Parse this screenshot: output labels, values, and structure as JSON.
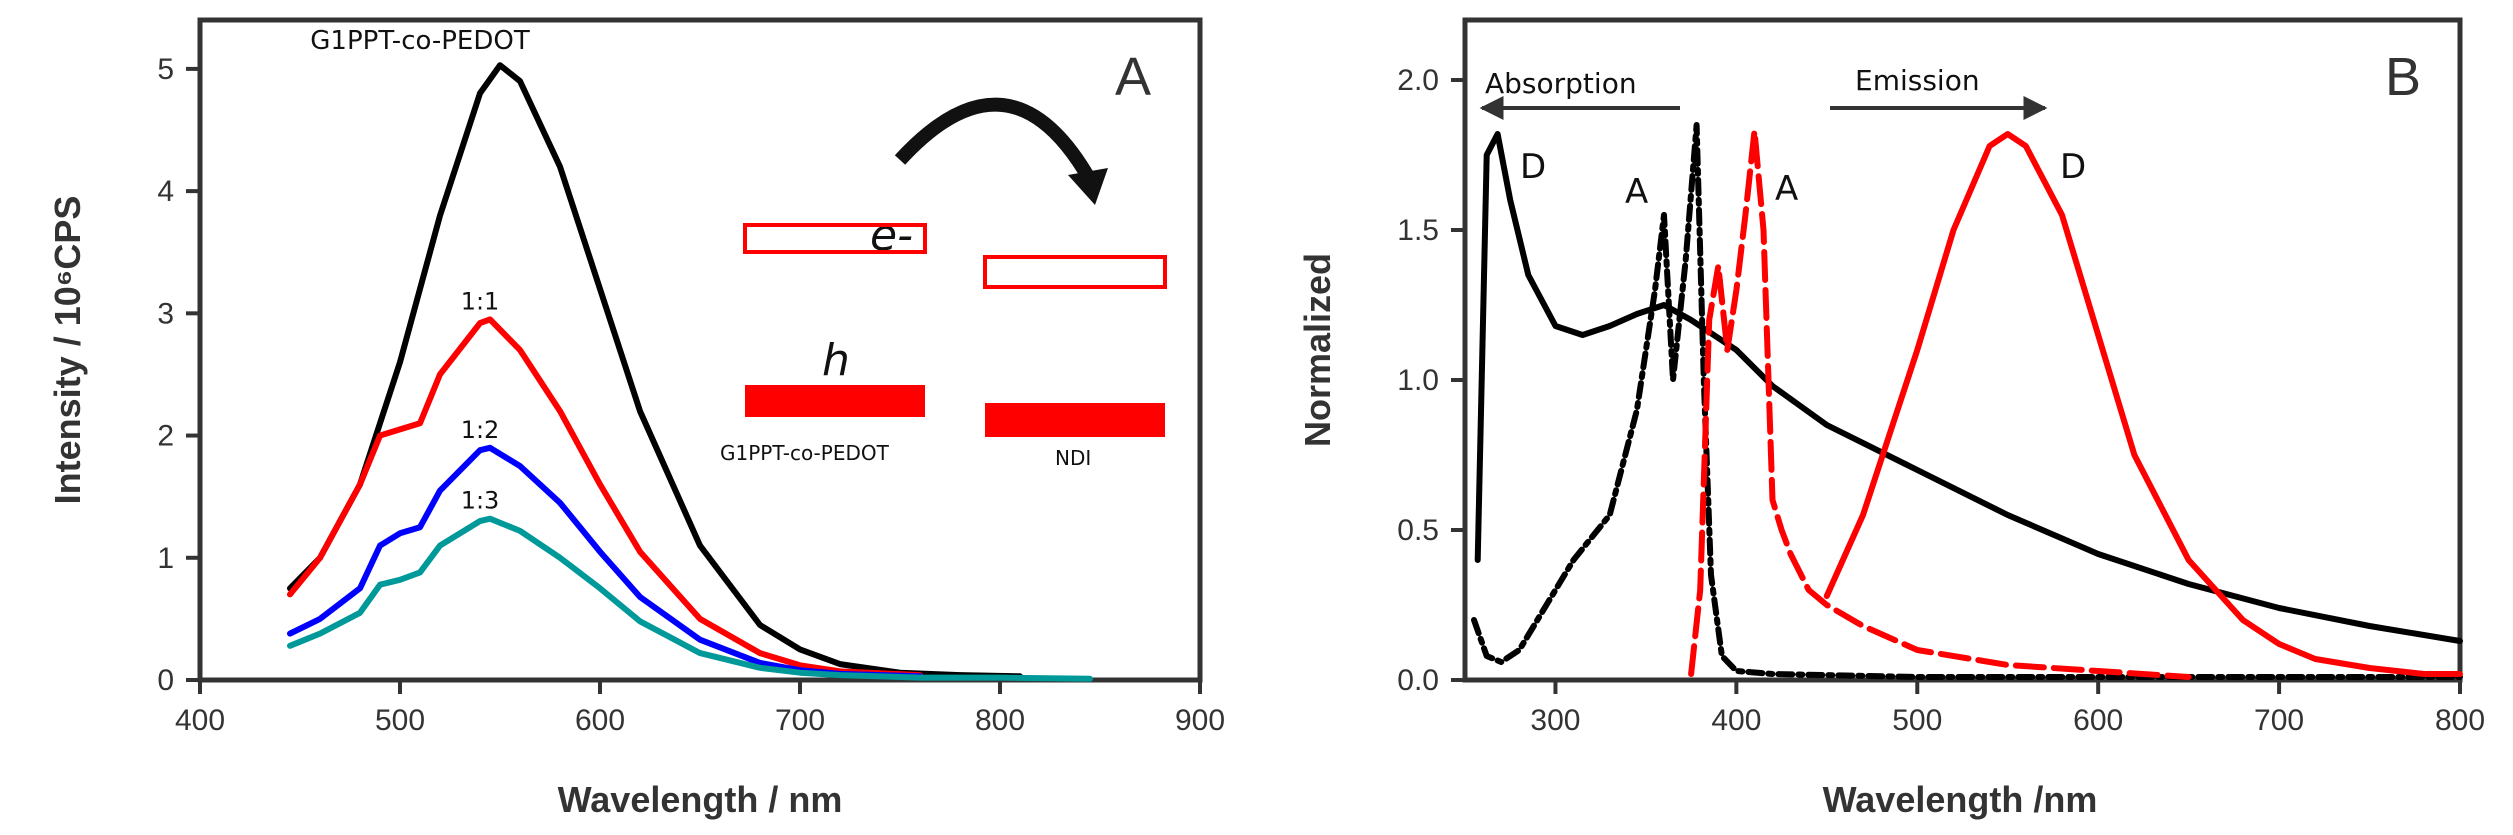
{
  "chart_data": [
    {
      "type": "line",
      "panel_label": "A",
      "xlabel": "Wavelength / nm",
      "ylabel": "Intensity / 10⁶CPS",
      "xlim": [
        400,
        900
      ],
      "ylim": [
        0,
        5.4
      ],
      "xticks": [
        400,
        500,
        600,
        700,
        800,
        900
      ],
      "yticks": [
        0,
        1,
        2,
        3,
        4,
        5
      ],
      "grid": false,
      "series": [
        {
          "name": "G1PPT-co-PEDOT",
          "color": "#000000",
          "x": [
            445,
            460,
            480,
            500,
            520,
            540,
            550,
            560,
            580,
            600,
            620,
            650,
            680,
            700,
            720,
            750,
            780,
            810
          ],
          "y": [
            0.75,
            1.0,
            1.6,
            2.6,
            3.8,
            4.8,
            5.03,
            4.9,
            4.2,
            3.2,
            2.2,
            1.1,
            0.45,
            0.25,
            0.13,
            0.06,
            0.04,
            0.03
          ]
        },
        {
          "name": "1:1",
          "color": "#ff0000",
          "x": [
            445,
            460,
            480,
            490,
            500,
            510,
            520,
            540,
            545,
            560,
            580,
            600,
            620,
            650,
            680,
            700,
            720,
            760
          ],
          "y": [
            0.7,
            1.0,
            1.6,
            2.0,
            2.05,
            2.1,
            2.5,
            2.92,
            2.95,
            2.7,
            2.2,
            1.6,
            1.05,
            0.5,
            0.22,
            0.12,
            0.07,
            0.04
          ]
        },
        {
          "name": "1:2",
          "color": "#0000ff",
          "x": [
            445,
            460,
            480,
            490,
            500,
            510,
            520,
            540,
            545,
            560,
            580,
            600,
            620,
            650,
            680,
            700,
            720,
            760
          ],
          "y": [
            0.38,
            0.5,
            0.75,
            1.1,
            1.2,
            1.25,
            1.55,
            1.88,
            1.9,
            1.75,
            1.45,
            1.05,
            0.68,
            0.33,
            0.14,
            0.08,
            0.05,
            0.03
          ]
        },
        {
          "name": "1:3",
          "color": "#009999",
          "x": [
            445,
            460,
            480,
            490,
            500,
            510,
            520,
            540,
            545,
            560,
            580,
            600,
            620,
            650,
            680,
            700,
            720,
            760,
            800,
            845
          ],
          "y": [
            0.28,
            0.38,
            0.55,
            0.78,
            0.82,
            0.88,
            1.1,
            1.3,
            1.32,
            1.22,
            1.0,
            0.75,
            0.48,
            0.22,
            0.1,
            0.06,
            0.04,
            0.02,
            0.02,
            0.01
          ]
        }
      ],
      "inset": {
        "electron_label": "e-",
        "hole_label": "h",
        "donor_label": "G1PPT-co-PEDOT",
        "acceptor_label": "NDI",
        "color": "#ff0000"
      }
    },
    {
      "type": "line",
      "panel_label": "B",
      "xlabel": "Wavelength /nm",
      "ylabel": "Normalized",
      "xlim": [
        250,
        800
      ],
      "ylim": [
        0,
        2.2
      ],
      "xticks": [
        300,
        400,
        500,
        600,
        700,
        800
      ],
      "yticks": [
        0.0,
        0.5,
        1.0,
        1.5,
        2.0
      ],
      "ytick_labels": [
        "0.0",
        "0.5",
        "1.0",
        "1.5",
        "2.0"
      ],
      "grid": false,
      "annotations": {
        "absorption": "Absorption",
        "emission": "Emission",
        "donor": "D",
        "acceptor": "A"
      },
      "series": [
        {
          "label": "D",
          "kind": "absorption",
          "color": "#000000",
          "dash": "solid",
          "x": [
            257,
            262,
            268,
            275,
            285,
            300,
            315,
            330,
            345,
            360,
            375,
            400,
            420,
            450,
            500,
            550,
            600,
            650,
            700,
            750,
            800
          ],
          "y": [
            0.4,
            1.75,
            1.82,
            1.6,
            1.35,
            1.18,
            1.15,
            1.18,
            1.22,
            1.25,
            1.2,
            1.1,
            0.98,
            0.85,
            0.7,
            0.55,
            0.42,
            0.32,
            0.24,
            0.18,
            0.13
          ]
        },
        {
          "label": "A",
          "kind": "absorption",
          "color": "#000000",
          "dash": "dashdot",
          "x": [
            255,
            262,
            270,
            280,
            295,
            310,
            330,
            345,
            355,
            360,
            365,
            372,
            378,
            382,
            386,
            392,
            400,
            420,
            500,
            600,
            800
          ],
          "y": [
            0.2,
            0.08,
            0.06,
            0.1,
            0.25,
            0.4,
            0.55,
            0.9,
            1.3,
            1.55,
            1.0,
            1.4,
            1.85,
            1.0,
            0.35,
            0.08,
            0.03,
            0.02,
            0.01,
            0.01,
            0.01
          ]
        },
        {
          "label": "A",
          "kind": "emission",
          "color": "#ff0000",
          "dash": "dashed",
          "x": [
            375,
            380,
            385,
            390,
            395,
            400,
            405,
            410,
            415,
            420,
            425,
            430,
            440,
            450,
            470,
            500,
            550,
            600,
            650
          ],
          "y": [
            0.02,
            0.3,
            1.2,
            1.38,
            1.1,
            1.3,
            1.55,
            1.83,
            1.5,
            0.6,
            0.5,
            0.42,
            0.3,
            0.25,
            0.18,
            0.1,
            0.05,
            0.03,
            0.01
          ]
        },
        {
          "label": "D",
          "kind": "emission",
          "color": "#ff0000",
          "dash": "solid",
          "x": [
            450,
            470,
            500,
            520,
            540,
            550,
            560,
            580,
            600,
            620,
            650,
            680,
            700,
            720,
            750,
            780,
            800
          ],
          "y": [
            0.28,
            0.55,
            1.1,
            1.5,
            1.78,
            1.82,
            1.78,
            1.55,
            1.15,
            0.75,
            0.4,
            0.2,
            0.12,
            0.07,
            0.04,
            0.02,
            0.02
          ]
        }
      ]
    }
  ]
}
